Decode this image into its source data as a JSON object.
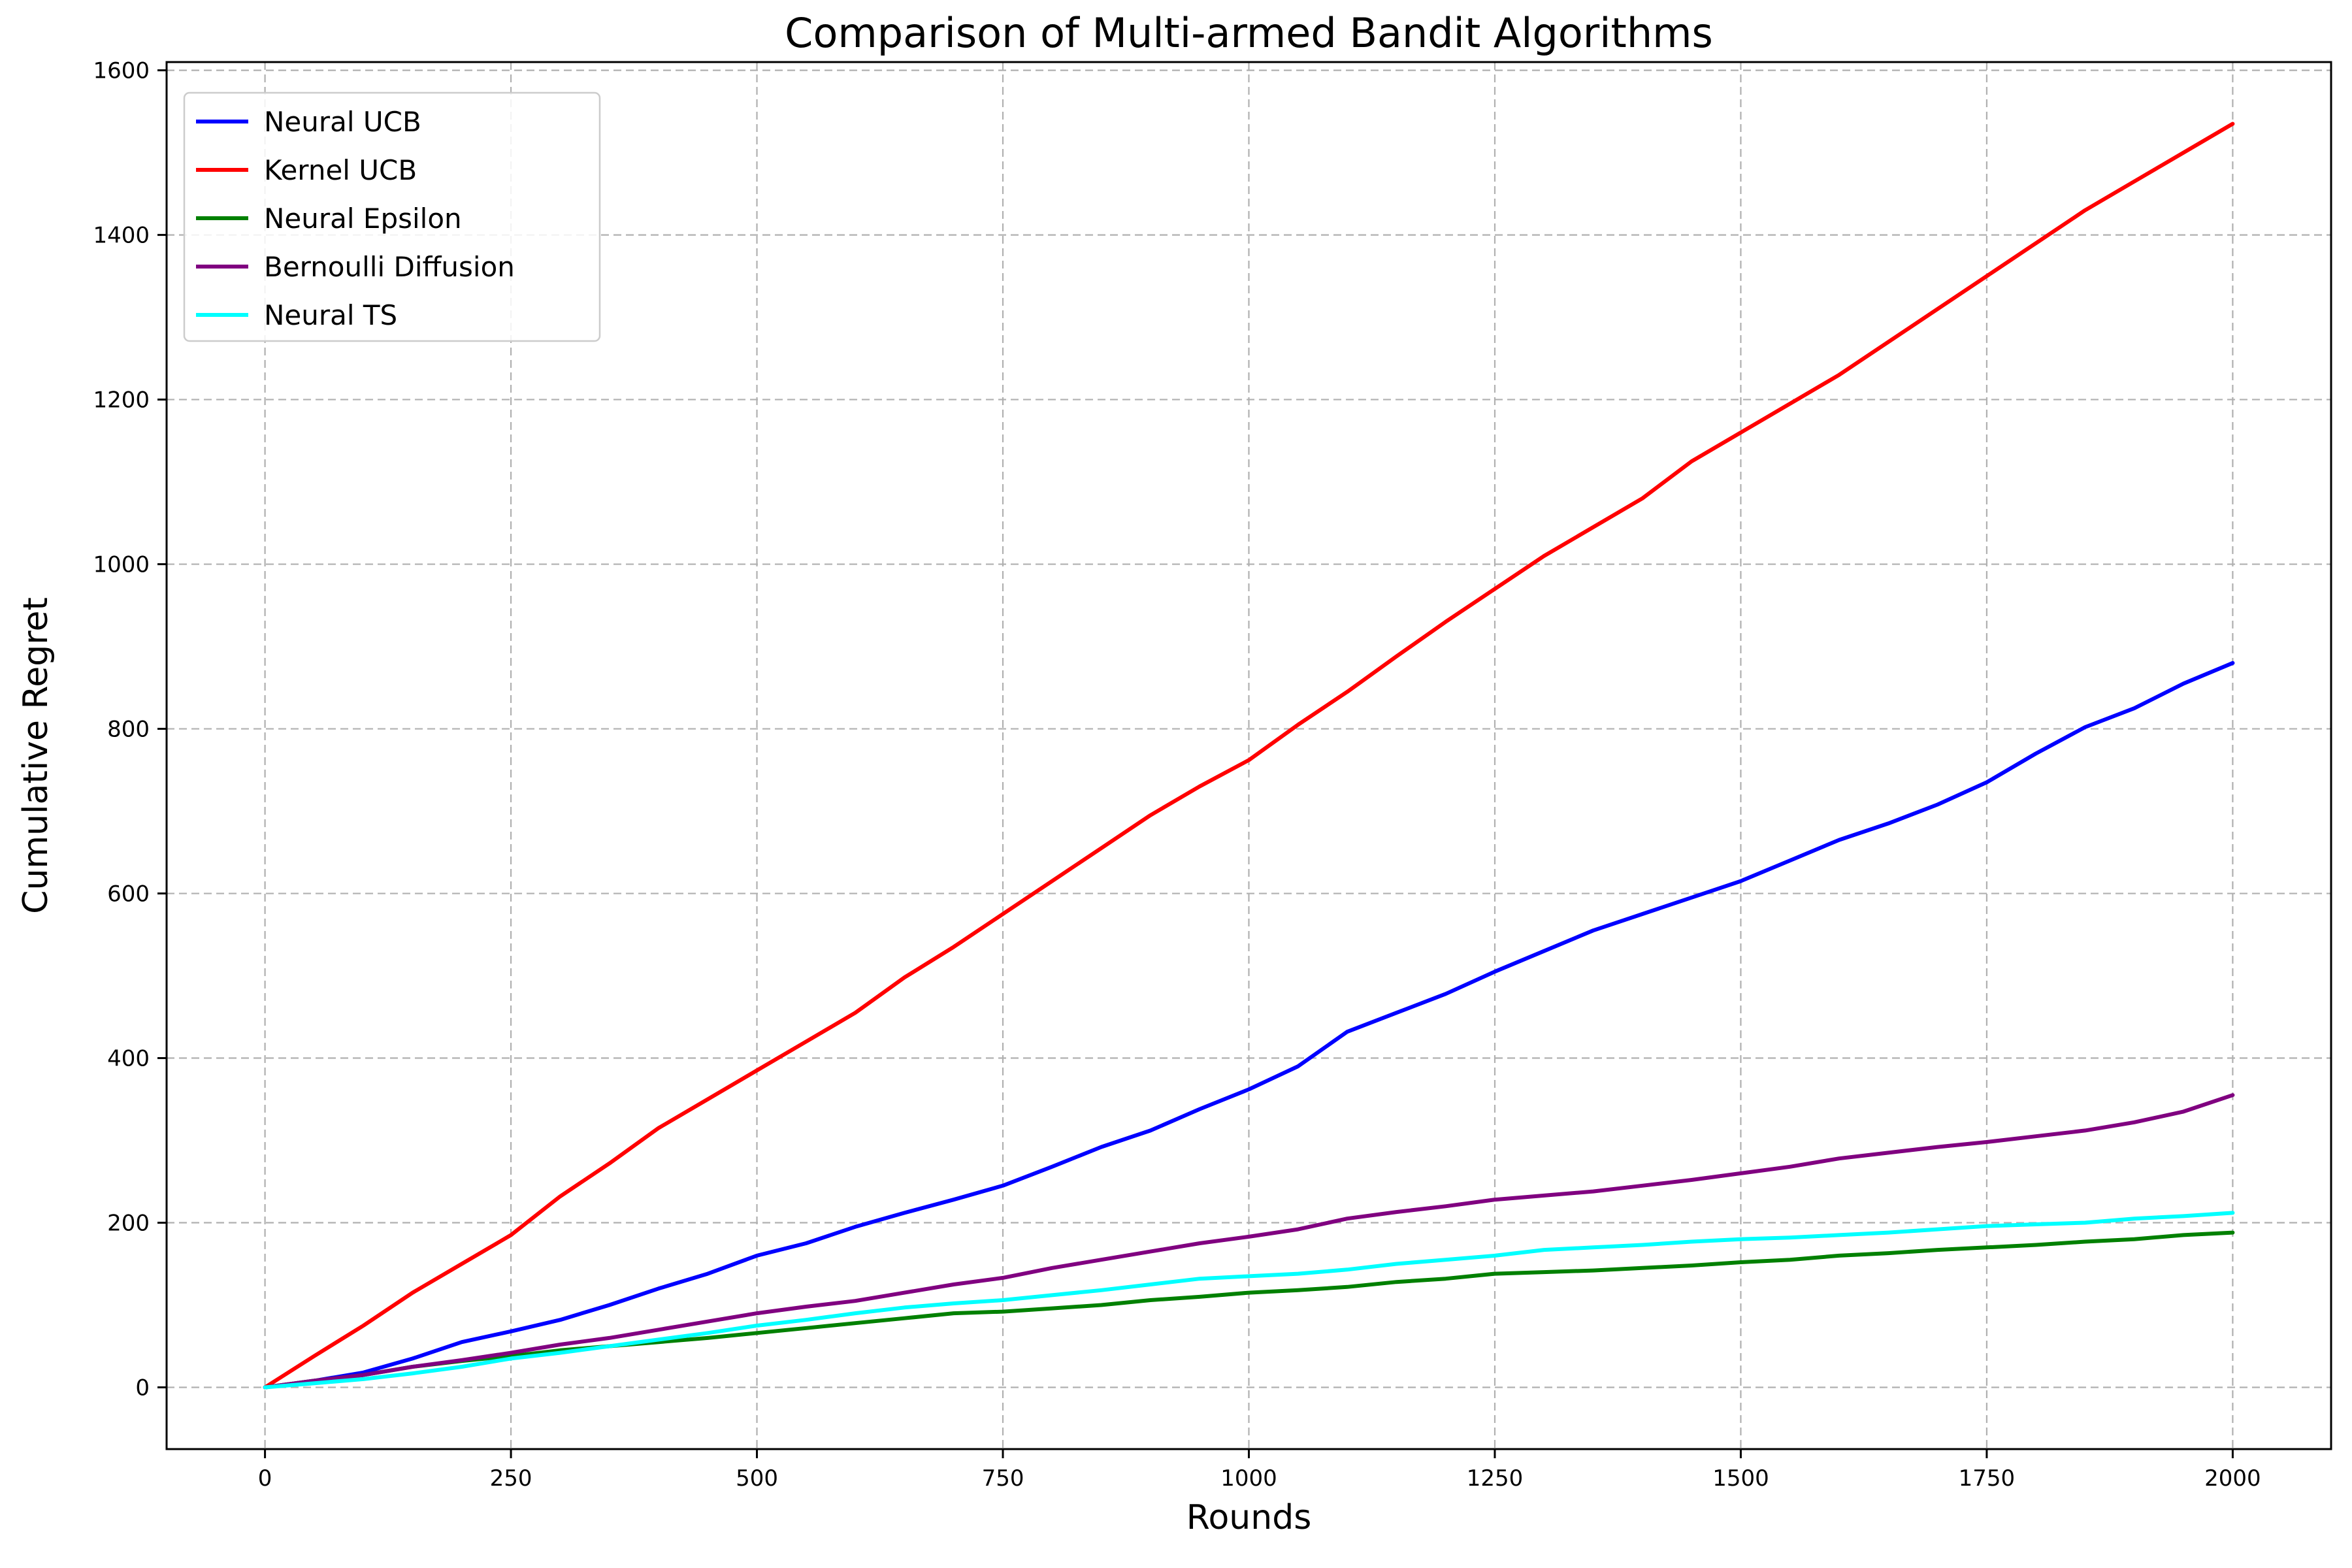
{
  "chart_data": {
    "type": "line",
    "title": "Comparison of Multi-armed Bandit Algorithms",
    "xlabel": "Rounds",
    "ylabel": "Cumulative Regret",
    "xlim": [
      -100,
      2100
    ],
    "ylim": [
      -75,
      1610
    ],
    "xticks": [
      0,
      250,
      500,
      750,
      1000,
      1250,
      1500,
      1750,
      2000
    ],
    "yticks": [
      0,
      200,
      400,
      600,
      800,
      1000,
      1200,
      1400,
      1600
    ],
    "grid": true,
    "legend_position": "top-left",
    "x": [
      0,
      50,
      100,
      150,
      200,
      250,
      300,
      350,
      400,
      450,
      500,
      550,
      600,
      650,
      700,
      750,
      800,
      850,
      900,
      950,
      1000,
      1050,
      1100,
      1150,
      1200,
      1250,
      1300,
      1350,
      1400,
      1450,
      1500,
      1550,
      1600,
      1650,
      1700,
      1750,
      1800,
      1850,
      1900,
      1950,
      2000
    ],
    "series": [
      {
        "name": "Neural UCB",
        "color": "#0000ff",
        "values": [
          0,
          8,
          18,
          35,
          55,
          68,
          82,
          100,
          120,
          138,
          160,
          175,
          195,
          212,
          228,
          245,
          268,
          292,
          312,
          338,
          362,
          390,
          432,
          455,
          478,
          505,
          530,
          555,
          575,
          595,
          615,
          640,
          665,
          685,
          708,
          735,
          770,
          802,
          825,
          855,
          880
        ]
      },
      {
        "name": "Kernel UCB",
        "color": "#ff0000",
        "values": [
          0,
          38,
          75,
          115,
          150,
          185,
          232,
          272,
          315,
          350,
          385,
          420,
          455,
          498,
          535,
          575,
          615,
          655,
          695,
          730,
          762,
          805,
          845,
          888,
          930,
          970,
          1010,
          1045,
          1080,
          1125,
          1160,
          1195,
          1230,
          1270,
          1310,
          1350,
          1390,
          1430,
          1465,
          1500,
          1535
        ]
      },
      {
        "name": "Neural Epsilon",
        "color": "#008000",
        "values": [
          0,
          8,
          15,
          25,
          32,
          38,
          45,
          50,
          55,
          60,
          66,
          72,
          78,
          84,
          90,
          92,
          96,
          100,
          106,
          110,
          115,
          118,
          122,
          128,
          132,
          138,
          140,
          142,
          145,
          148,
          152,
          155,
          160,
          163,
          167,
          170,
          173,
          177,
          180,
          185,
          188
        ]
      },
      {
        "name": "Bernoulli Diffusion",
        "color": "#800080",
        "values": [
          0,
          8,
          15,
          25,
          33,
          42,
          52,
          60,
          70,
          80,
          90,
          98,
          105,
          115,
          125,
          133,
          145,
          155,
          165,
          175,
          183,
          192,
          205,
          213,
          220,
          228,
          233,
          238,
          245,
          252,
          260,
          268,
          278,
          285,
          292,
          298,
          305,
          312,
          322,
          335,
          355
        ]
      },
      {
        "name": "Neural TS",
        "color": "#00ffff",
        "values": [
          0,
          5,
          10,
          17,
          25,
          35,
          42,
          50,
          58,
          66,
          75,
          82,
          90,
          97,
          102,
          106,
          112,
          118,
          125,
          132,
          135,
          138,
          143,
          150,
          155,
          160,
          167,
          170,
          173,
          177,
          180,
          182,
          185,
          188,
          192,
          196,
          198,
          200,
          205,
          208,
          212
        ]
      }
    ]
  }
}
